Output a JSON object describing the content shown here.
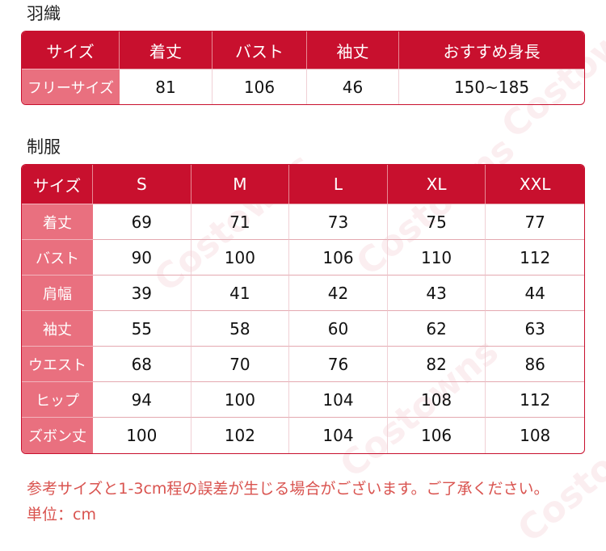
{
  "haori": {
    "title": "羽織",
    "headers": [
      "サイズ",
      "着丈",
      "バスト",
      "袖丈",
      "おすすめ身長"
    ],
    "row": [
      "フリーサイズ",
      "81",
      "106",
      "46",
      "150~185"
    ]
  },
  "uniform": {
    "title": "制服",
    "corner": "サイズ",
    "sizes": [
      "S",
      "M",
      "L",
      "XL",
      "XXL"
    ],
    "rows": [
      {
        "label": "着丈",
        "values": [
          "69",
          "71",
          "73",
          "75",
          "77"
        ]
      },
      {
        "label": "バスト",
        "values": [
          "90",
          "100",
          "106",
          "110",
          "112"
        ]
      },
      {
        "label": "肩幅",
        "values": [
          "39",
          "41",
          "42",
          "43",
          "44"
        ]
      },
      {
        "label": "袖丈",
        "values": [
          "55",
          "58",
          "60",
          "62",
          "63"
        ]
      },
      {
        "label": "ウエスト",
        "values": [
          "68",
          "70",
          "76",
          "82",
          "86"
        ]
      },
      {
        "label": "ヒップ",
        "values": [
          "94",
          "100",
          "104",
          "108",
          "112"
        ]
      },
      {
        "label": "ズボン丈",
        "values": [
          "100",
          "102",
          "104",
          "106",
          "108"
        ]
      }
    ]
  },
  "notes": {
    "disclaimer": "参考サイズと1-3cm程の誤差が生じる場合がございます。ご了承ください。",
    "unit": "単位：cm"
  },
  "watermark": "Costowns",
  "colors": {
    "header_red": "#c8102e",
    "rowhead_pink": "#e9707f",
    "note_red": "#d9534f"
  }
}
